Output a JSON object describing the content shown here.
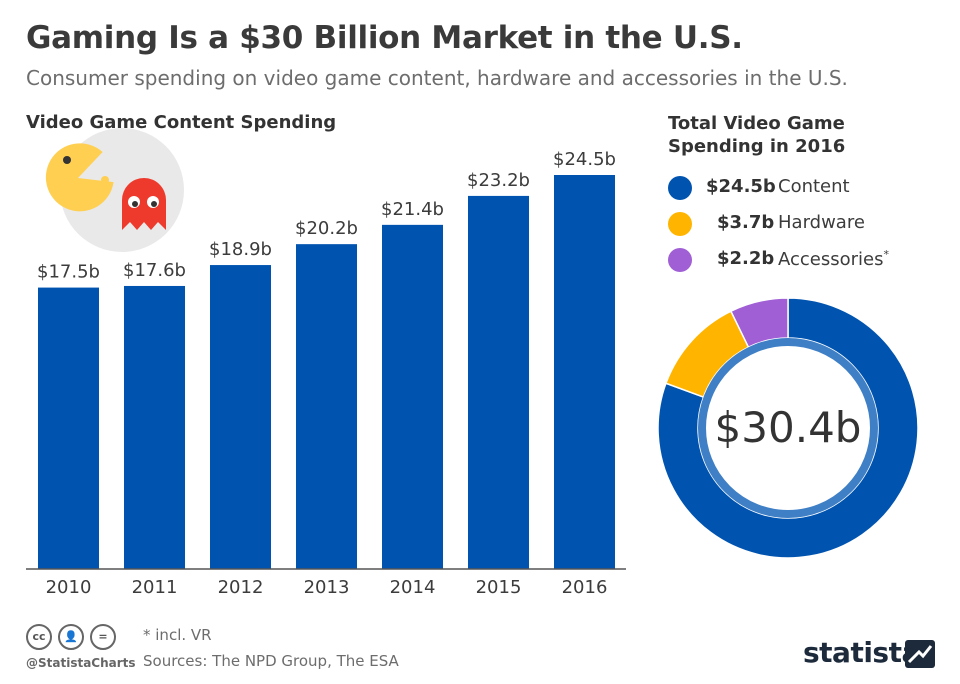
{
  "title": "Gaming Is a $30 Billion Market in the U.S.",
  "subtitle": "Consumer spending on video game content, hardware and accessories in the U.S.",
  "bar_section_title": "Video Game Content Spending",
  "donut_section_title": "Total Video Game Spending in 2016",
  "colors": {
    "content": "#0054b0",
    "hardware": "#ffb400",
    "accessories": "#a05fd5",
    "inner_ring": "#3f7fc6",
    "axis": "#555555",
    "pacman": "#ffcf52",
    "ghost": "#ee3a2c",
    "bg_circle": "#e9e9e9"
  },
  "chart_data": [
    {
      "type": "bar",
      "title": "Video Game Content Spending",
      "categories": [
        "2010",
        "2011",
        "2012",
        "2013",
        "2014",
        "2015",
        "2016"
      ],
      "values": [
        17.5,
        17.6,
        18.9,
        20.2,
        21.4,
        23.2,
        24.5
      ],
      "labels": [
        "$17.5b",
        "$17.6b",
        "$18.9b",
        "$20.2b",
        "$21.4b",
        "$23.2b",
        "$24.5b"
      ],
      "ylim": [
        0,
        24.5
      ],
      "xlabel": "",
      "ylabel": ""
    },
    {
      "type": "pie",
      "title": "Total Video Game Spending in 2016",
      "total_label": "$30.4b",
      "slices": [
        {
          "name": "Content",
          "value": 24.5,
          "value_label": "$24.5b",
          "color": "#0054b0"
        },
        {
          "name": "Hardware",
          "value": 3.7,
          "value_label": "$3.7b",
          "color": "#ffb400"
        },
        {
          "name": "Accessories",
          "value": 2.2,
          "value_label": "$2.2b",
          "color": "#a05fd5",
          "footnote": "*"
        }
      ]
    }
  ],
  "footer": {
    "note": "* incl. VR",
    "sources": "Sources: The NPD Group, The ESA",
    "handle": "@StatistaCharts",
    "brand": "statista",
    "cc_icons": [
      "cc-icon",
      "by-icon",
      "nd-icon"
    ]
  }
}
